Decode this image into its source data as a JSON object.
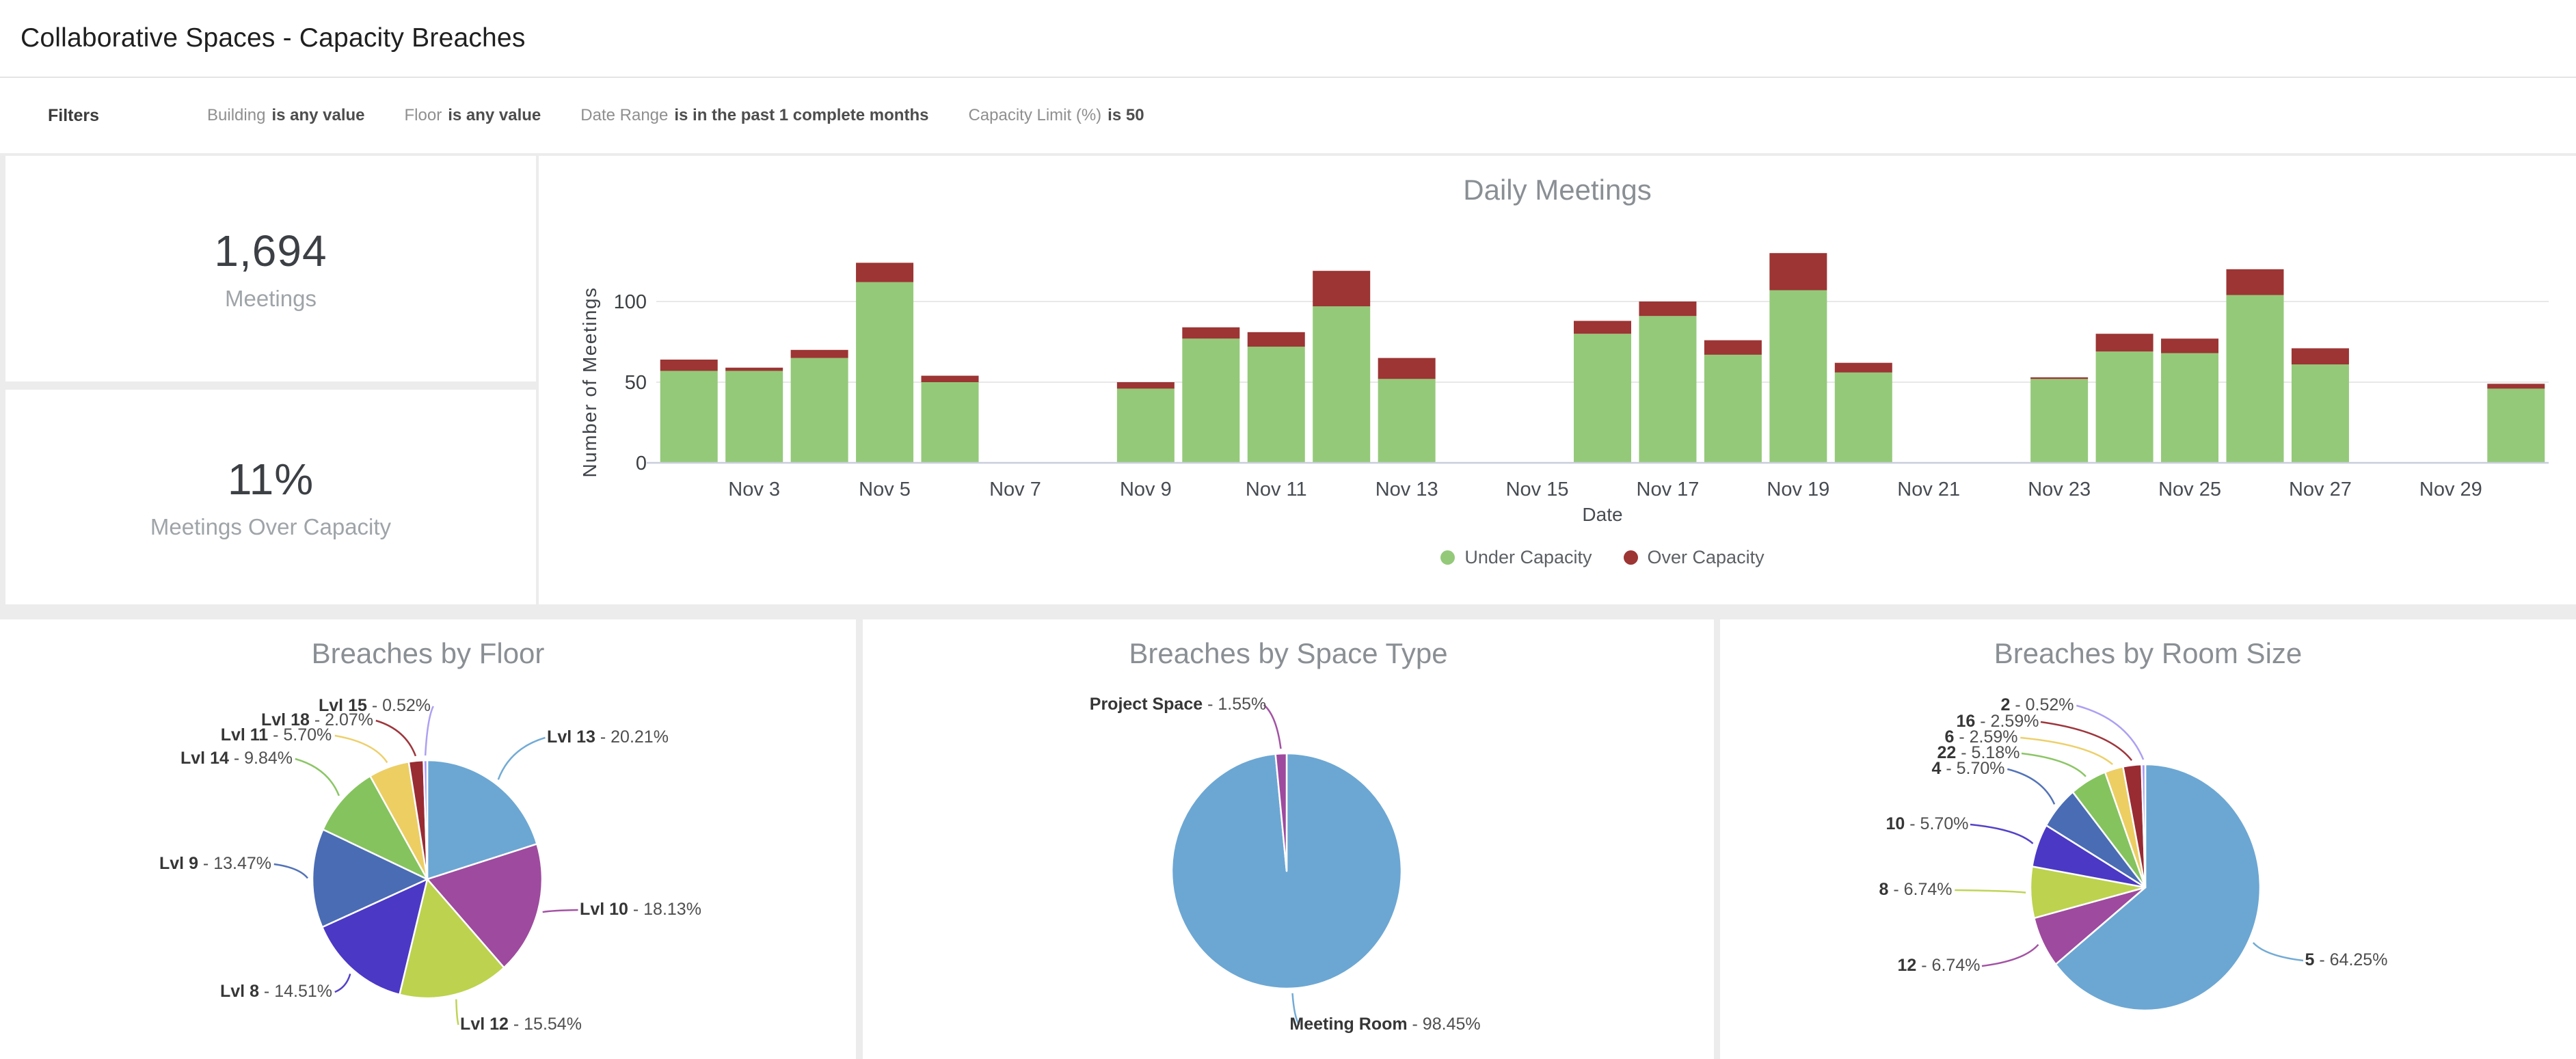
{
  "page": {
    "title": "Collaborative Spaces - Capacity Breaches"
  },
  "filters": {
    "label": "Filters",
    "items": [
      {
        "field": "Building",
        "value": "is any value"
      },
      {
        "field": "Floor",
        "value": "is any value"
      },
      {
        "field": "Date Range",
        "value": "is in the past 1 complete months"
      },
      {
        "field": "Capacity Limit (%)",
        "value": "is 50"
      }
    ]
  },
  "kpis": [
    {
      "value": "1,694",
      "label": "Meetings"
    },
    {
      "value": "11%",
      "label": "Meetings Over Capacity"
    }
  ],
  "colors": {
    "under_capacity": "#94c979",
    "over_capacity": "#9c3534",
    "canvas_bg": "#ececec",
    "title_gray": "#8a8f94"
  },
  "chart_data": [
    {
      "id": "daily_meetings",
      "type": "bar",
      "stacked": true,
      "title": "Daily Meetings",
      "xlabel": "Date",
      "ylabel": "Number of Meetings",
      "ylim": [
        0,
        140
      ],
      "yticks": [
        0,
        50,
        100
      ],
      "x": [
        "Nov 2",
        "Nov 3",
        "Nov 4",
        "Nov 5",
        "Nov 6",
        "Nov 9",
        "Nov 10",
        "Nov 11",
        "Nov 12",
        "Nov 13",
        "Nov 16",
        "Nov 17",
        "Nov 18",
        "Nov 19",
        "Nov 20",
        "Nov 23",
        "Nov 24",
        "Nov 25",
        "Nov 26",
        "Nov 27",
        "Nov 30"
      ],
      "days": [
        2,
        3,
        4,
        5,
        6,
        9,
        10,
        11,
        12,
        13,
        16,
        17,
        18,
        19,
        20,
        23,
        24,
        25,
        26,
        27,
        30
      ],
      "series": [
        {
          "name": "Under Capacity",
          "color": "#94c979",
          "values": [
            57,
            57,
            65,
            112,
            50,
            46,
            77,
            72,
            97,
            52,
            80,
            91,
            67,
            107,
            56,
            52,
            69,
            68,
            104,
            61,
            46
          ]
        },
        {
          "name": "Over Capacity",
          "color": "#9c3534",
          "values": [
            7,
            2,
            5,
            12,
            4,
            4,
            7,
            9,
            22,
            13,
            8,
            9,
            9,
            23,
            6,
            1,
            11,
            9,
            16,
            10,
            3
          ]
        }
      ],
      "x_ticks": [
        {
          "label": "Nov 3",
          "day": 3
        },
        {
          "label": "Nov 5",
          "day": 5
        },
        {
          "label": "Nov 7",
          "day": 7
        },
        {
          "label": "Nov 9",
          "day": 9
        },
        {
          "label": "Nov 11",
          "day": 11
        },
        {
          "label": "Nov 13",
          "day": 13
        },
        {
          "label": "Nov 15",
          "day": 15
        },
        {
          "label": "Nov 17",
          "day": 17
        },
        {
          "label": "Nov 19",
          "day": 19
        },
        {
          "label": "Nov 21",
          "day": 21
        },
        {
          "label": "Nov 23",
          "day": 23
        },
        {
          "label": "Nov 25",
          "day": 25
        },
        {
          "label": "Nov 27",
          "day": 27
        },
        {
          "label": "Nov 29",
          "day": 29
        }
      ],
      "legend_position": "bottom-center",
      "grid": true
    },
    {
      "id": "breaches_by_floor",
      "type": "pie",
      "title": "Breaches by Floor",
      "slices": [
        {
          "name": "Lvl 13",
          "value": 20.21,
          "pct_label": "20.21%",
          "color": "#6ca7d3"
        },
        {
          "name": "Lvl 10",
          "value": 18.13,
          "pct_label": "18.13%",
          "color": "#9e4a9e"
        },
        {
          "name": "Lvl 12",
          "value": 15.54,
          "pct_label": "15.54%",
          "color": "#bdd24e"
        },
        {
          "name": "Lvl 8",
          "value": 14.51,
          "pct_label": "14.51%",
          "color": "#4b38c5"
        },
        {
          "name": "Lvl 9",
          "value": 13.47,
          "pct_label": "13.47%",
          "color": "#4a6cb4"
        },
        {
          "name": "Lvl 14",
          "value": 9.84,
          "pct_label": "9.84%",
          "color": "#85c35e"
        },
        {
          "name": "Lvl 11",
          "value": 5.7,
          "pct_label": "5.70%",
          "color": "#ecce63"
        },
        {
          "name": "Lvl 18",
          "value": 2.07,
          "pct_label": "2.07%",
          "color": "#992b33"
        },
        {
          "name": "Lvl 15",
          "value": 0.52,
          "pct_label": "0.52%",
          "color": "#a89bf2"
        }
      ]
    },
    {
      "id": "breaches_by_space_type",
      "type": "pie",
      "title": "Breaches by Space Type",
      "slices": [
        {
          "name": "Meeting Room",
          "value": 98.45,
          "pct_label": "98.45%",
          "color": "#6ca7d3"
        },
        {
          "name": "Project Space",
          "value": 1.55,
          "pct_label": "1.55%",
          "color": "#9e4a9e"
        }
      ]
    },
    {
      "id": "breaches_by_room_size",
      "type": "pie",
      "title": "Breaches by Room Size",
      "slices": [
        {
          "name": "5",
          "value": 64.25,
          "pct_label": "64.25%",
          "color": "#6ca7d3"
        },
        {
          "name": "12",
          "value": 6.74,
          "pct_label": "6.74%",
          "color": "#9e4a9e"
        },
        {
          "name": "8",
          "value": 6.74,
          "pct_label": "6.74%",
          "color": "#bdd24e"
        },
        {
          "name": "10",
          "value": 5.7,
          "pct_label": "5.70%",
          "color": "#4b38c5"
        },
        {
          "name": "4",
          "value": 5.7,
          "pct_label": "5.70%",
          "color": "#4a6cb4"
        },
        {
          "name": "22",
          "value": 5.18,
          "pct_label": "5.18%",
          "color": "#85c35e"
        },
        {
          "name": "6",
          "value": 2.59,
          "pct_label": "2.59%",
          "color": "#ecce63"
        },
        {
          "name": "16",
          "value": 2.59,
          "pct_label": "2.59%",
          "color": "#992b33"
        },
        {
          "name": "2",
          "value": 0.52,
          "pct_label": "0.52%",
          "color": "#a89bf2"
        }
      ]
    }
  ]
}
